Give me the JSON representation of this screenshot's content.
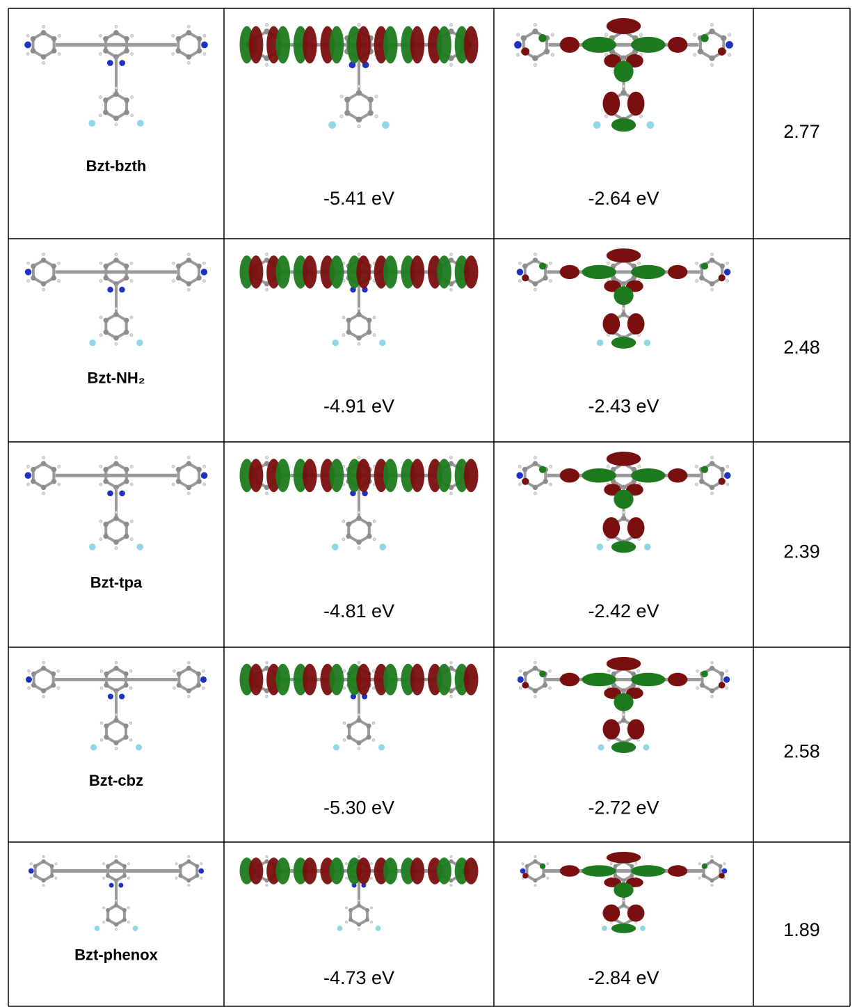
{
  "table": {
    "rows": [
      {
        "name": "Bzt-bzth",
        "homo": "-5.41 eV",
        "lumo": "-2.64 eV",
        "gap": "2.77"
      },
      {
        "name": "Bzt-NH₂",
        "homo": "-4.91 eV",
        "lumo": "-2.43 eV",
        "gap": "2.48"
      },
      {
        "name": "Bzt-tpa",
        "homo": "-4.81 eV",
        "lumo": "-2.42 eV",
        "gap": "2.39"
      },
      {
        "name": "Bzt-cbz",
        "homo": "-5.30 eV",
        "lumo": "-2.72 eV",
        "gap": "2.58"
      },
      {
        "name": "Bzt-phenox",
        "homo": "-4.73 eV",
        "lumo": "-2.84 eV",
        "gap": "1.89"
      }
    ]
  }
}
